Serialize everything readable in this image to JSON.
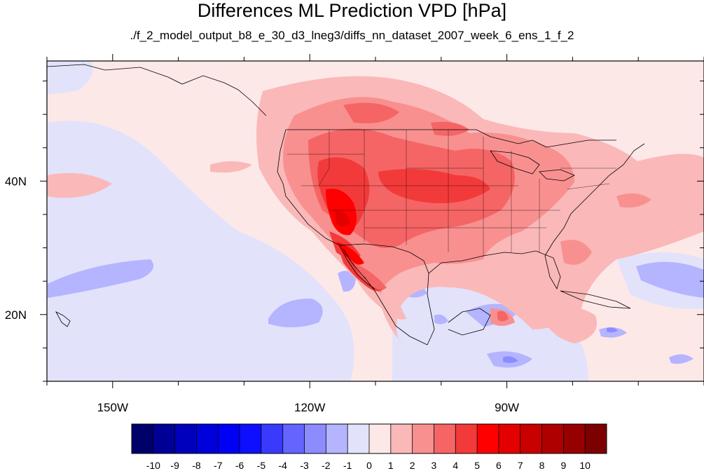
{
  "title": "Differences ML Prediction VPD [hPa]",
  "subtitle": "./f_2_model_output_b8_e_30_d3_lneg3/diffs_nn_dataset_2007_week_6_ens_1_f_2",
  "map": {
    "lon_range": [
      -160,
      -60
    ],
    "lat_range": [
      10,
      58
    ],
    "lon_ticks": [
      {
        "lon": -150,
        "label": "150W"
      },
      {
        "lon": -120,
        "label": "120W"
      },
      {
        "lon": -90,
        "label": "90W"
      }
    ],
    "lat_ticks": [
      {
        "lat": 40,
        "label": "40N"
      },
      {
        "lat": 20,
        "label": "20N"
      }
    ]
  },
  "colorbar": {
    "levels": [
      "-10",
      "-9",
      "-8",
      "-7",
      "-6",
      "-5",
      "-4",
      "-3",
      "-2",
      "-1",
      "0",
      "1",
      "2",
      "3",
      "4",
      "5",
      "6",
      "7",
      "8",
      "9",
      "10"
    ],
    "colors": [
      "#00006a",
      "#000096",
      "#0000bc",
      "#0000dc",
      "#0000f5",
      "#0f0fff",
      "#3a3aff",
      "#6464ff",
      "#8c8cff",
      "#b4b4ff",
      "#e2e2fb",
      "#fde8e8",
      "#fbb8b8",
      "#f99090",
      "#f56565",
      "#f33a3a",
      "#ff0000",
      "#e30000",
      "#c90000",
      "#af0000",
      "#960000",
      "#7d0000"
    ]
  }
}
